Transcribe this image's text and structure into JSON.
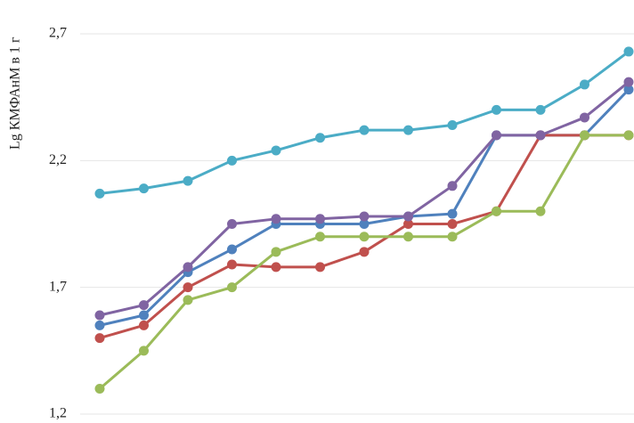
{
  "chart_data": {
    "type": "line",
    "y_label": "Lg КМФАнМ в 1 г",
    "categories": [
      null,
      null,
      null,
      null,
      null,
      null,
      null,
      null,
      null,
      null,
      null,
      null,
      null
    ],
    "series": [
      {
        "name": null,
        "color": "#4f81bd",
        "values": [
          1.55,
          1.59,
          1.76,
          1.85,
          1.95,
          1.95,
          1.95,
          1.98,
          1.99,
          2.3,
          2.3,
          2.3,
          2.48
        ]
      },
      {
        "name": null,
        "color": "#c0504d",
        "values": [
          1.5,
          1.55,
          1.7,
          1.79,
          1.78,
          1.78,
          1.84,
          1.95,
          1.95,
          2.0,
          2.3,
          2.3,
          2.3
        ]
      },
      {
        "name": null,
        "color": "#9bbb59",
        "values": [
          1.3,
          1.45,
          1.65,
          1.7,
          1.84,
          1.9,
          1.9,
          1.9,
          1.9,
          2.0,
          2.0,
          2.3,
          2.3
        ]
      },
      {
        "name": null,
        "color": "#8064a2",
        "values": [
          1.59,
          1.63,
          1.78,
          1.95,
          1.97,
          1.97,
          1.98,
          1.98,
          2.1,
          2.3,
          2.3,
          2.37,
          2.51
        ]
      },
      {
        "name": null,
        "color": "#4bacc6",
        "values": [
          2.07,
          2.09,
          2.12,
          2.2,
          2.24,
          2.29,
          2.32,
          2.32,
          2.34,
          2.4,
          2.4,
          2.5,
          2.63
        ]
      }
    ],
    "ylim": [
      1.2,
      2.7
    ],
    "yticks": [
      {
        "value": 1.2,
        "label": "1,2"
      },
      {
        "value": 1.7,
        "label": "1,7"
      },
      {
        "value": 2.2,
        "label": "2,2"
      },
      {
        "value": 2.7,
        "label": "2,7"
      }
    ],
    "grid": true
  }
}
